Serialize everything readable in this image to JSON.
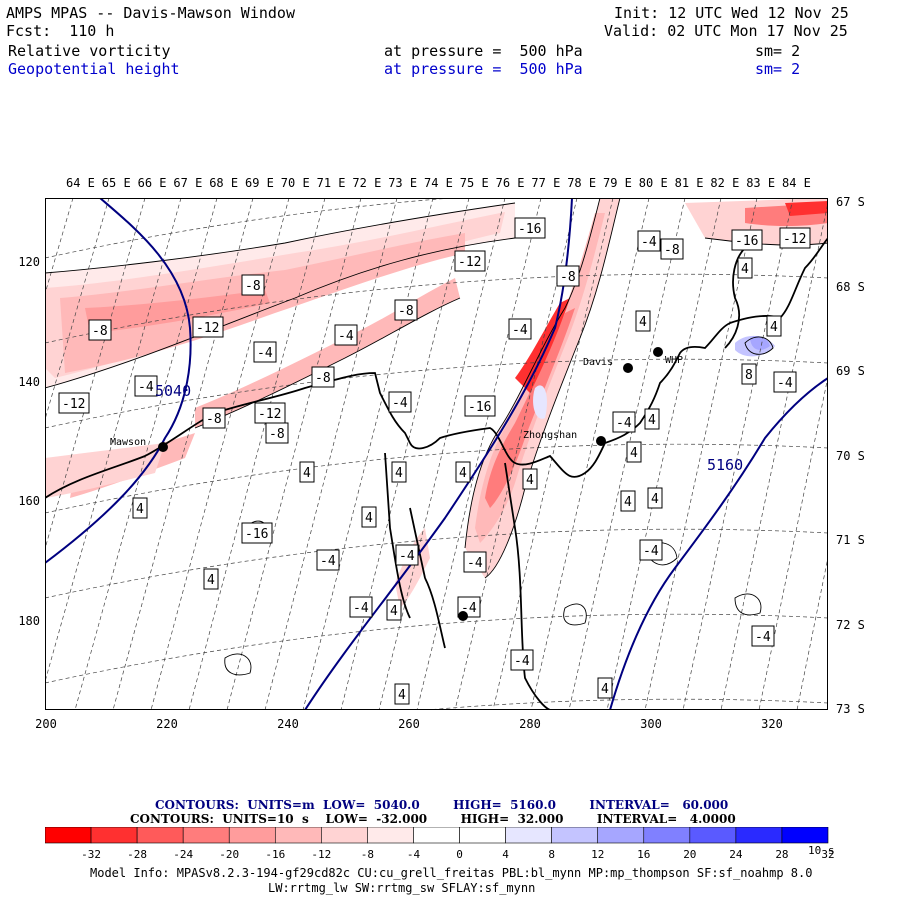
{
  "header": {
    "title": "AMPS MPAS -- Davis-Mawson Window",
    "fcst": "Fcst:  110 h",
    "init": "Init: 12 UTC Wed 12 Nov 25",
    "valid": "Valid: 02 UTC Mon 17 Nov 25",
    "field1": "Relative vorticity",
    "field1_level": "at pressure =  500 hPa",
    "field1_sm": "sm= 2",
    "field2": "Geopotential height",
    "field2_level": "at pressure =  500 hPa",
    "field2_sm": "sm= 2"
  },
  "axes": {
    "lon_labels": [
      "64 E",
      "65 E",
      "66 E",
      "67 E",
      "68 E",
      "69 E",
      "70 E",
      "71 E",
      "72 E",
      "73 E",
      "74 E",
      "75 E",
      "76 E",
      "77 E",
      "78 E",
      "79 E",
      "80 E",
      "81 E",
      "82 E",
      "83 E",
      "84 E"
    ],
    "lat_labels": [
      "67 S",
      "68 S",
      "69 S",
      "70 S",
      "71 S",
      "72 S",
      "73 S"
    ],
    "x_ticks": [
      "200",
      "220",
      "240",
      "260",
      "280",
      "300",
      "320"
    ],
    "y_ticks": [
      "120",
      "140",
      "160",
      "180"
    ]
  },
  "map": {
    "stations": [
      "Mawson",
      "Davis",
      "WHP",
      "Zhongshan"
    ],
    "height_labels": [
      "5040",
      "5160"
    ],
    "vorticity_labels": [
      "-16",
      "-12",
      "-16",
      "-12",
      "-8",
      "-4",
      "-8",
      "-8",
      "-12",
      "-4",
      "-8",
      "-4",
      "-4",
      "-4",
      "-8",
      "-12",
      "-16",
      "-8",
      "-12",
      "-8",
      "-4",
      "-4",
      "4",
      "4",
      "4",
      "4",
      "4",
      "4",
      "-16",
      "4",
      "-4",
      "-4",
      "4",
      "-4",
      "4",
      "-4",
      "4",
      "4",
      "4",
      "4",
      "4",
      "8",
      "-4",
      "4",
      "-4",
      "-4",
      "4",
      "4",
      "-8",
      "-4",
      "-4"
    ]
  },
  "legend": {
    "line1": "CONTOURS:  UNITS=m  LOW=  5040.0        HIGH=  5160.0        INTERVAL=   60.000",
    "line2": "CONTOURS:  UNITS=10  s    LOW=  -32.000        HIGH=  32.000        INTERVAL=   4.0000",
    "colorbar_ticks": [
      "-32",
      "-28",
      "-24",
      "-20",
      "-16",
      "-12",
      "-8",
      "-4",
      "0",
      "4",
      "8",
      "12",
      "16",
      "20",
      "24",
      "28",
      "32"
    ],
    "colorbar_unit": "10  s",
    "colors": [
      "#ff0000",
      "#ff3030",
      "#ff5a5a",
      "#ff7c7c",
      "#ff9c9c",
      "#ffb9b9",
      "#ffd3d3",
      "#ffeaea",
      "#ffffff",
      "#ffffff",
      "#e6e6ff",
      "#c4c4ff",
      "#a6a6ff",
      "#8080ff",
      "#5a5aff",
      "#2a2aff",
      "#0000ff"
    ]
  },
  "footer": {
    "line1": "Model Info: MPASv8.2.3-194-gf29cd82c CU:cu_grell_freitas PBL:bl_mynn MP:mp_thompson SF:sf_noahmp 8.0",
    "line2": "LW:rrtmg_lw SW:rrtmg_sw SFLAY:sf_mynn"
  }
}
